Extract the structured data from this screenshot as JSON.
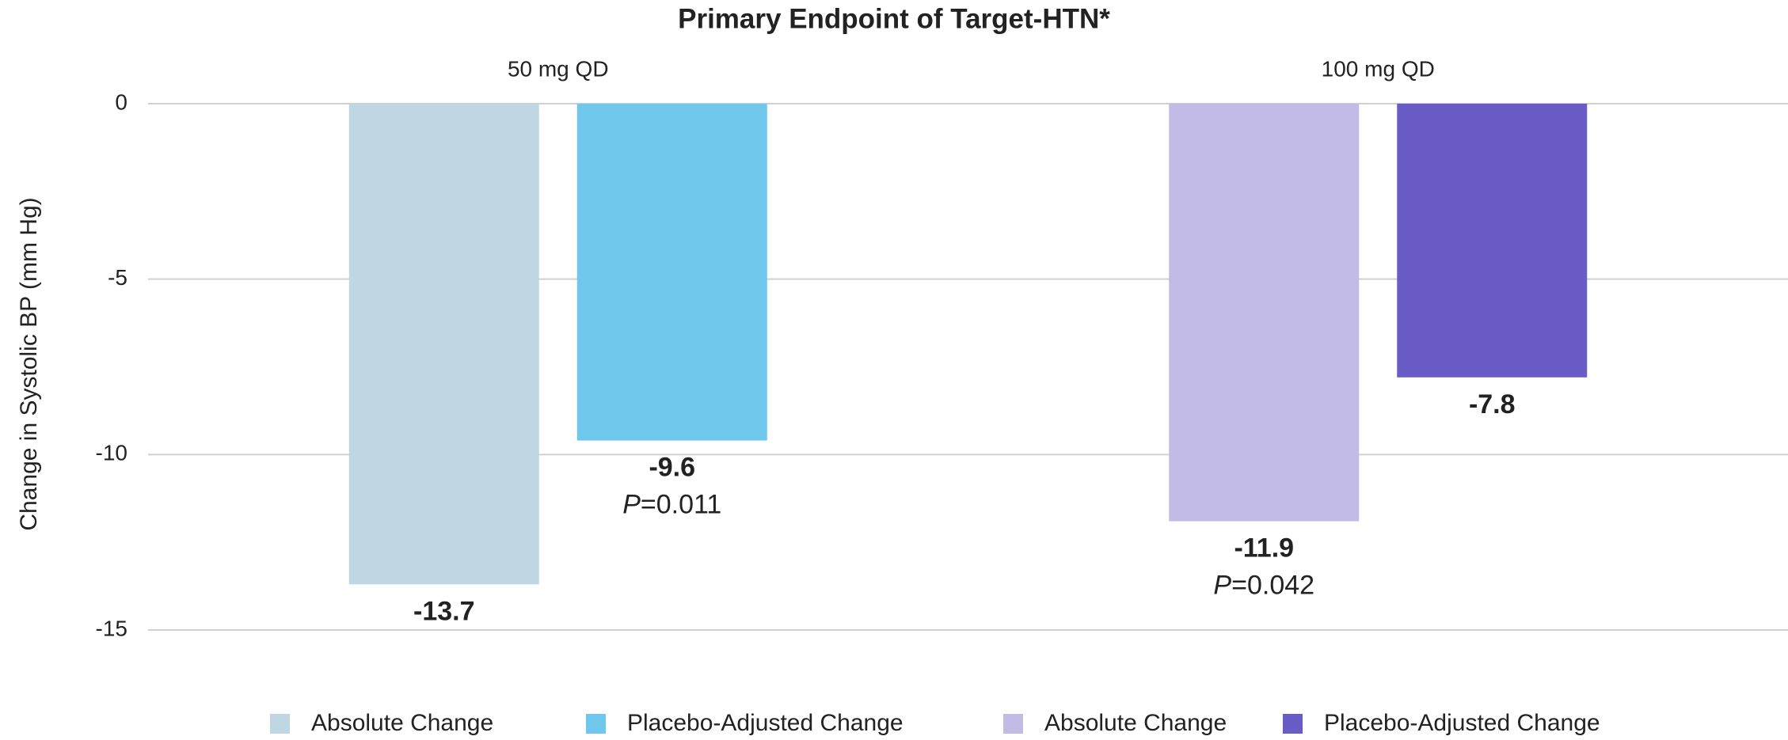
{
  "chart_data": {
    "type": "bar",
    "title": "Primary Endpoint of Target-HTN*",
    "y_label": "Change in Systolic BP (mm Hg)",
    "categories": [
      "50 mg QD",
      "100 mg QD"
    ],
    "series": [
      {
        "name": "Absolute Change",
        "color": "#bfd7e2",
        "values": [
          -13.7,
          null
        ]
      },
      {
        "name": "Placebo-Adjusted Change",
        "color": "#6fc7ec",
        "values": [
          -9.6,
          null
        ]
      },
      {
        "name": "Absolute Change",
        "color": "#c1bbe6",
        "values": [
          null,
          -11.9
        ]
      },
      {
        "name": "Placebo-Adjusted Change",
        "color": "#6a5cc6",
        "values": [
          null,
          -7.8
        ]
      }
    ],
    "annotations": [
      {
        "italic": "P",
        "text": "=0.011"
      },
      {
        "italic": "P",
        "text": "=0.042"
      }
    ],
    "ylim": [
      -15,
      0
    ],
    "yticks": [
      0,
      -5,
      -10,
      -15
    ],
    "grid": true,
    "legend": "bottom"
  }
}
